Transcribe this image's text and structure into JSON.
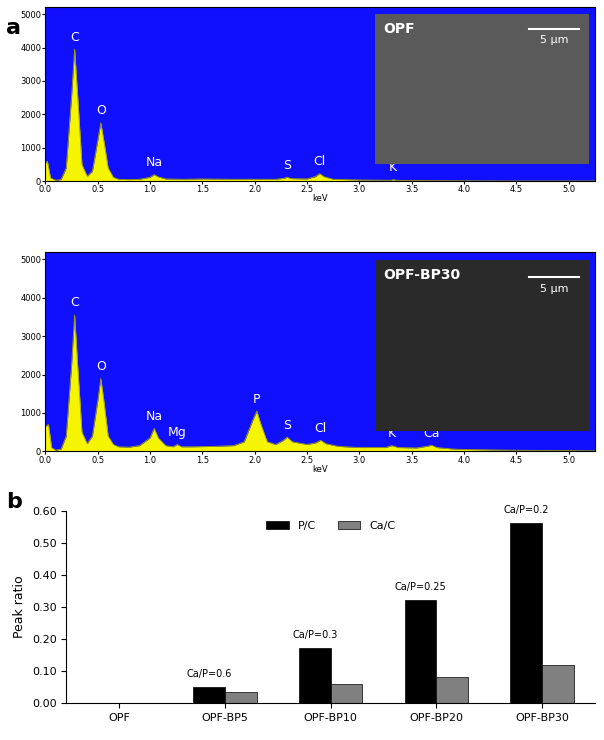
{
  "chart_data": [
    {
      "type": "area",
      "panel_label": "a",
      "x_label": "keV",
      "color": "#f5f500",
      "x": [
        0.0,
        0.02,
        0.05,
        0.1,
        0.15,
        0.2,
        0.25,
        0.28,
        0.31,
        0.35,
        0.4,
        0.45,
        0.5,
        0.53,
        0.56,
        0.6,
        0.65,
        0.7,
        0.8,
        0.9,
        1.0,
        1.04,
        1.08,
        1.15,
        1.3,
        1.5,
        1.8,
        2.0,
        2.2,
        2.28,
        2.31,
        2.35,
        2.5,
        2.58,
        2.62,
        2.66,
        2.75,
        3.0,
        3.3,
        3.32,
        3.36,
        3.6,
        4.0,
        4.5,
        5.0,
        5.25
      ],
      "values": [
        550,
        600,
        100,
        30,
        50,
        400,
        2500,
        3950,
        2500,
        500,
        150,
        300,
        1200,
        1750,
        1200,
        400,
        120,
        60,
        50,
        60,
        120,
        200,
        130,
        70,
        60,
        70,
        60,
        60,
        60,
        90,
        120,
        80,
        70,
        140,
        230,
        140,
        60,
        40,
        30,
        50,
        30,
        20,
        15,
        10,
        10,
        10
      ],
      "xlim": [
        0,
        5.25
      ],
      "ylim": [
        0,
        5200
      ],
      "xticks": [
        {
          "value": 0,
          "label": "0.0"
        },
        {
          "value": 0.5,
          "label": "0.5"
        },
        {
          "value": 1,
          "label": "1.0"
        },
        {
          "value": 1.5,
          "label": "1.5"
        },
        {
          "value": 2,
          "label": "2.0"
        },
        {
          "value": 2.5,
          "label": "2.5"
        },
        {
          "value": 3,
          "label": "3.0"
        },
        {
          "value": 3.5,
          "label": "3.5"
        },
        {
          "value": 4,
          "label": "4.0"
        },
        {
          "value": 4.5,
          "label": "4.5"
        },
        {
          "value": 5,
          "label": "5.0"
        }
      ],
      "yticks": [
        0,
        1000,
        2000,
        3000,
        4000,
        5000
      ],
      "annotations": [
        {
          "text": "C",
          "x": 0.28,
          "y": 3950
        },
        {
          "text": "O",
          "x": 0.53,
          "y": 1750
        },
        {
          "text": "Na",
          "x": 1.04,
          "y": 200
        },
        {
          "text": "S",
          "x": 2.31,
          "y": 120
        },
        {
          "text": "Cl",
          "x": 2.62,
          "y": 230
        },
        {
          "text": "K",
          "x": 3.32,
          "y": 50
        }
      ],
      "inset": {
        "label": "OPF",
        "scale_bar": "5 µm"
      }
    },
    {
      "type": "area",
      "x_label": "keV",
      "color": "#f5f500",
      "x": [
        0.0,
        0.03,
        0.06,
        0.1,
        0.15,
        0.2,
        0.25,
        0.28,
        0.31,
        0.35,
        0.4,
        0.45,
        0.5,
        0.53,
        0.56,
        0.6,
        0.65,
        0.7,
        0.8,
        0.9,
        1.0,
        1.04,
        1.08,
        1.15,
        1.22,
        1.26,
        1.3,
        1.4,
        1.6,
        1.8,
        1.9,
        1.98,
        2.02,
        2.06,
        2.12,
        2.2,
        2.27,
        2.31,
        2.36,
        2.5,
        2.58,
        2.63,
        2.68,
        2.8,
        3.0,
        3.25,
        3.31,
        3.37,
        3.55,
        3.66,
        3.69,
        3.74,
        3.9,
        4.0,
        4.5,
        5.0,
        5.25
      ],
      "values": [
        650,
        700,
        100,
        30,
        60,
        400,
        2200,
        3550,
        2200,
        500,
        200,
        400,
        1300,
        1900,
        1300,
        400,
        180,
        120,
        110,
        150,
        350,
        600,
        350,
        150,
        120,
        180,
        120,
        120,
        130,
        150,
        250,
        800,
        1050,
        700,
        250,
        180,
        280,
        370,
        250,
        180,
        220,
        290,
        200,
        130,
        100,
        100,
        150,
        100,
        90,
        140,
        160,
        100,
        60,
        50,
        30,
        20,
        15
      ],
      "xlim": [
        0,
        5.25
      ],
      "ylim": [
        0,
        5200
      ],
      "xticks": [
        {
          "value": 0,
          "label": "0.0"
        },
        {
          "value": 0.5,
          "label": "0.5"
        },
        {
          "value": 1,
          "label": "1.0"
        },
        {
          "value": 1.5,
          "label": "1.5"
        },
        {
          "value": 2,
          "label": "2.0"
        },
        {
          "value": 2.5,
          "label": "2.5"
        },
        {
          "value": 3,
          "label": "3.0"
        },
        {
          "value": 3.5,
          "label": "3.5"
        },
        {
          "value": 4,
          "label": "4.0"
        },
        {
          "value": 4.5,
          "label": "4.5"
        },
        {
          "value": 5,
          "label": "5.0"
        }
      ],
      "yticks": [
        0,
        1000,
        2000,
        3000,
        4000,
        5000
      ],
      "annotations": [
        {
          "text": "C",
          "x": 0.28,
          "y": 3550
        },
        {
          "text": "O",
          "x": 0.53,
          "y": 1900
        },
        {
          "text": "Na",
          "x": 1.04,
          "y": 600
        },
        {
          "text": "Mg",
          "x": 1.26,
          "y": 180
        },
        {
          "text": "P",
          "x": 2.02,
          "y": 1050
        },
        {
          "text": "S",
          "x": 2.31,
          "y": 370
        },
        {
          "text": "Cl",
          "x": 2.63,
          "y": 290
        },
        {
          "text": "K",
          "x": 3.31,
          "y": 150
        },
        {
          "text": "Ca",
          "x": 3.69,
          "y": 160
        }
      ],
      "inset": {
        "label": "OPF-BP30",
        "scale_bar": "5 µm"
      }
    },
    {
      "type": "bar",
      "panel_label": "b",
      "y_label": "Peak ratio",
      "categories": [
        "OPF",
        "OPF-BP5",
        "OPF-BP10",
        "OPF-BP20",
        "OPF-BP30"
      ],
      "series": [
        {
          "name": "P/C",
          "color": "#000000",
          "values": [
            0,
            0.05,
            0.17,
            0.32,
            0.56
          ]
        },
        {
          "name": "Ca/C",
          "color": "#808080",
          "values": [
            0,
            0.035,
            0.06,
            0.08,
            0.118
          ]
        }
      ],
      "ylim": [
        0,
        0.6
      ],
      "yticks": [
        {
          "value": 0,
          "label": "0.00"
        },
        {
          "value": 0.1,
          "label": "0.10"
        },
        {
          "value": 0.2,
          "label": "0.20"
        },
        {
          "value": 0.3,
          "label": "0.30"
        },
        {
          "value": 0.4,
          "label": "0.40"
        },
        {
          "value": 0.5,
          "label": "0.50"
        },
        {
          "value": 0.6,
          "label": "0.60"
        }
      ],
      "legend": "upper center",
      "annotations": [
        {
          "text": "Ca/P=0.6",
          "category": "OPF-BP5",
          "y": 0.05
        },
        {
          "text": "Ca/P=0.3",
          "category": "OPF-BP10",
          "y": 0.17
        },
        {
          "text": "Ca/P=0.25",
          "category": "OPF-BP20",
          "y": 0.32
        },
        {
          "text": "Ca/P=0.2",
          "category": "OPF-BP30",
          "y": 0.56
        }
      ]
    }
  ]
}
